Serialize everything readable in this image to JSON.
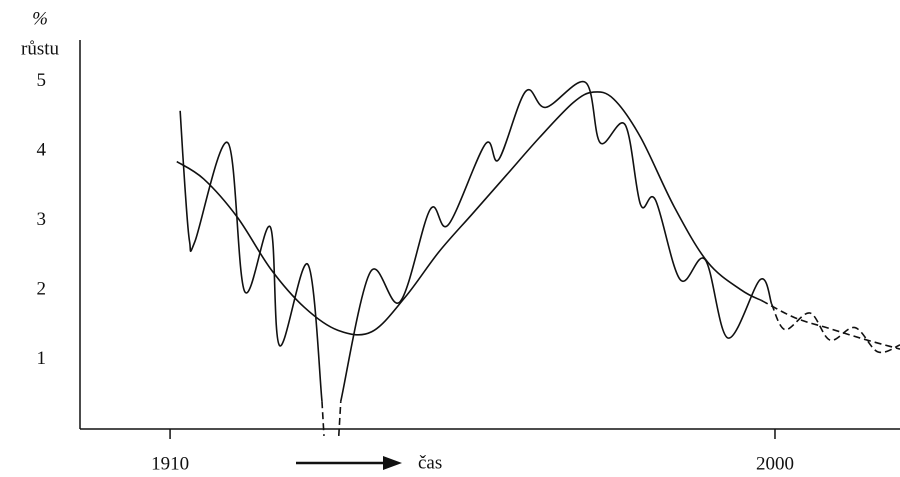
{
  "chart_data": {
    "type": "line",
    "ylabel": [
      "%",
      "růstu"
    ],
    "xlabel": "čas",
    "xlim": [
      1896.6,
      2018.6
    ],
    "ylim": [
      0,
      5.6
    ],
    "xticks": [
      1910,
      2000
    ],
    "yticks": [
      1,
      2,
      3,
      4,
      5
    ],
    "series": [
      {
        "color": "#111",
        "style": "solid",
        "x": [
          1911.5,
          1912.2,
          1912.9,
          1913.7,
          1918.6,
          1921.1,
          1924.9,
          1926.3,
          1930.5,
          1932.6,
          null,
          1935.4,
          1939.8,
          1944.2,
          1948.7,
          1951.4,
          1956.9,
          1958.9,
          1962.9,
          1965.9,
          1971.8,
          1974.0,
          1977.7,
          1980.0,
          1982.2,
          1985.9,
          1989.6,
          1993.0,
          1997.8,
          1999.5
        ],
        "values": [
          4.58,
          3.5,
          2.7,
          2.7,
          4.12,
          1.98,
          2.91,
          1.2,
          2.37,
          0.4,
          null,
          0.4,
          2.26,
          1.83,
          3.16,
          2.94,
          4.1,
          3.88,
          4.86,
          4.63,
          4.99,
          4.12,
          4.38,
          3.23,
          3.3,
          2.15,
          2.44,
          1.31,
          2.15,
          1.8
        ]
      },
      {
        "color": "#111",
        "style": "dashed",
        "x": [
          1932.6,
          1932.9,
          null,
          1935.1,
          1935.4,
          null,
          1999.5,
          2001.5,
          2005.2,
          2008.2,
          2011.9,
          2015.3,
          2018.6
        ],
        "values": [
          0.4,
          -0.1,
          null,
          -0.1,
          0.4,
          null,
          1.8,
          1.43,
          1.67,
          1.28,
          1.46,
          1.11,
          1.21
        ]
      },
      {
        "color": "#111",
        "style": "solid",
        "x": [
          1911,
          1915,
          1920,
          1925,
          1930,
          1935,
          1940,
          1945,
          1950,
          1955,
          1960,
          1965,
          1970,
          1973,
          1976,
          1980,
          1985,
          1990,
          1995,
          1998
        ],
        "values": [
          3.85,
          3.6,
          3.05,
          2.3,
          1.75,
          1.42,
          1.4,
          1.9,
          2.55,
          3.1,
          3.65,
          4.2,
          4.7,
          4.85,
          4.75,
          4.2,
          3.2,
          2.4,
          2.0,
          1.85
        ]
      },
      {
        "color": "#111",
        "style": "dashed",
        "x": [
          1998,
          2003,
          2008,
          2013,
          2018.6
        ],
        "values": [
          1.85,
          1.6,
          1.45,
          1.3,
          1.15
        ]
      }
    ]
  }
}
